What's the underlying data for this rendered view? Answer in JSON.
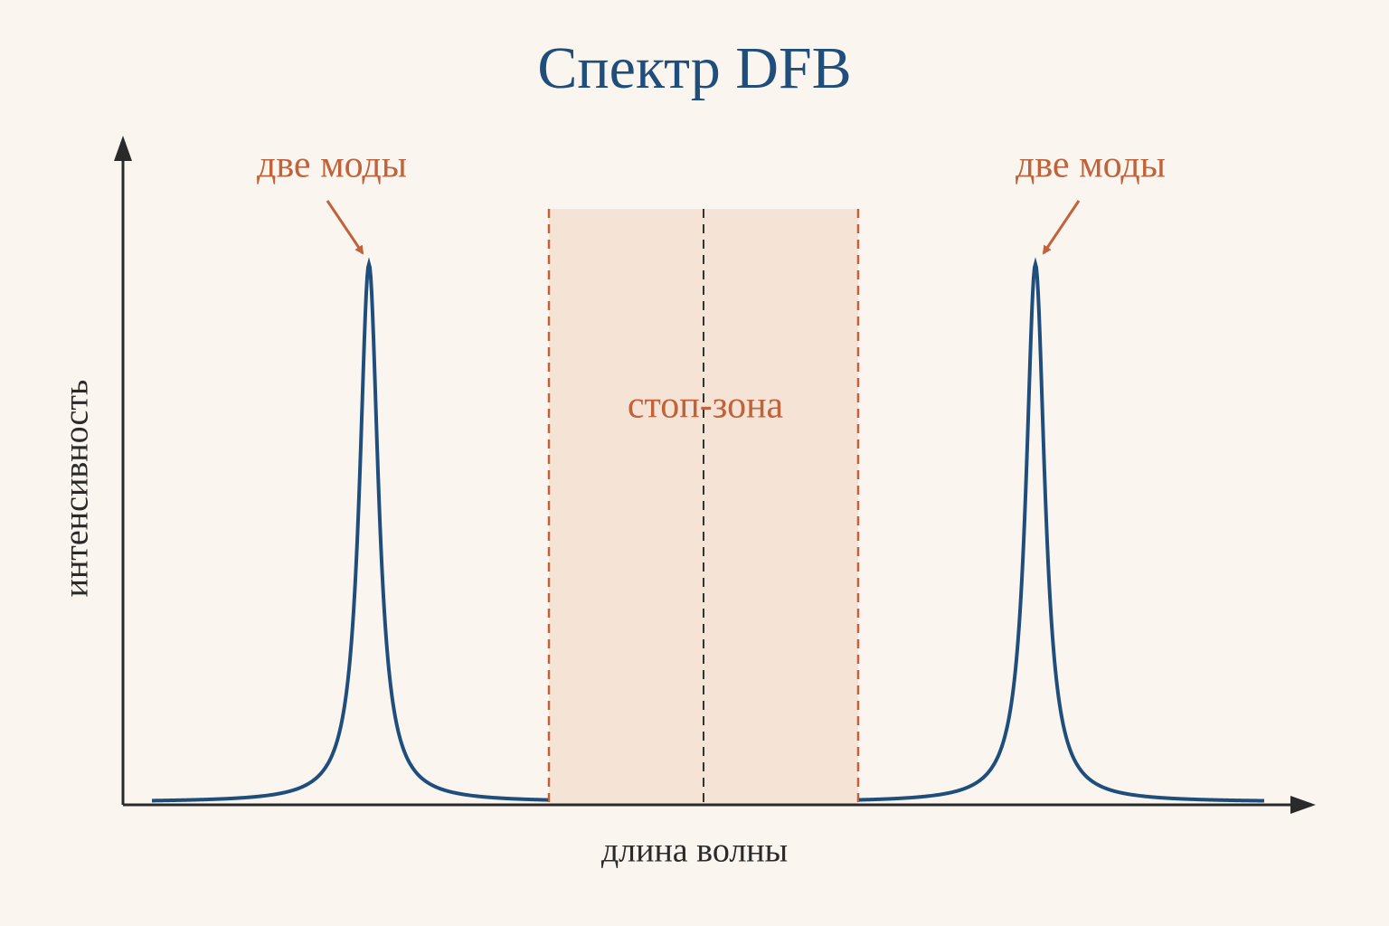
{
  "title": "Спектр DFB",
  "annotations": {
    "left_modes": "две моды",
    "right_modes": "две моды",
    "stop_band": "стоп-зона"
  },
  "axes": {
    "y_label": "интенсивность",
    "x_label": "длина волны"
  }
}
